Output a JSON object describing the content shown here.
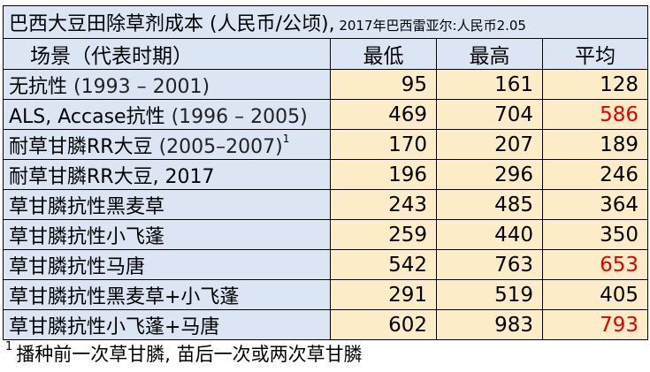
{
  "title": {
    "main": "巴西大豆田除草剂成本 (人民币/公顷),",
    "note": " 2017年巴西雷亚尔:人民币2.05"
  },
  "headers": {
    "scenario": "场景（代表时期）",
    "min": "最低",
    "max": "最高",
    "avg": "平均"
  },
  "rows": [
    {
      "label": "无抗性",
      "years": " (1993 – 2001)",
      "sup": "",
      "min": "95",
      "max": "161",
      "avg": "128",
      "highlight": false
    },
    {
      "label": "ALS, Accase抗性",
      "years": " (1996 – 2005)",
      "sup": "",
      "min": "469",
      "max": "704",
      "avg": "586",
      "highlight": true
    },
    {
      "label": "耐草甘膦RR大豆",
      "years": " (2005–2007)",
      "sup": "1",
      "min": "170",
      "max": "207",
      "avg": "189",
      "highlight": false
    },
    {
      "label": "耐草甘膦RR大豆, 2017",
      "years": "",
      "sup": "",
      "min": "196",
      "max": "296",
      "avg": "246",
      "highlight": false
    },
    {
      "label": "草甘膦抗性黑麦草",
      "years": "",
      "sup": "",
      "min": "243",
      "max": "485",
      "avg": "364",
      "highlight": false
    },
    {
      "label": "草甘膦抗性小飞蓬",
      "years": "",
      "sup": "",
      "min": "259",
      "max": "440",
      "avg": "350",
      "highlight": false
    },
    {
      "label": "草甘膦抗性马唐",
      "years": "",
      "sup": "",
      "min": "542",
      "max": "763",
      "avg": "653",
      "highlight": true
    },
    {
      "label": "草甘膦抗性黑麦草+小飞蓬",
      "years": "",
      "sup": "",
      "min": "291",
      "max": "519",
      "avg": "405",
      "highlight": false
    },
    {
      "label": "草甘膦抗性小飞蓬+马唐",
      "years": "",
      "sup": "",
      "min": "602",
      "max": "983",
      "avg": "793",
      "highlight": true
    }
  ],
  "footnote": {
    "marker": "1",
    "text": "播种前一次草甘膦, 苗后一次或两次草甘膦"
  },
  "colors": {
    "header_fill": "#dbe5f3",
    "value_fill": "#fdecc8",
    "highlight_text": "#e00000",
    "normal_text": "#000000"
  }
}
